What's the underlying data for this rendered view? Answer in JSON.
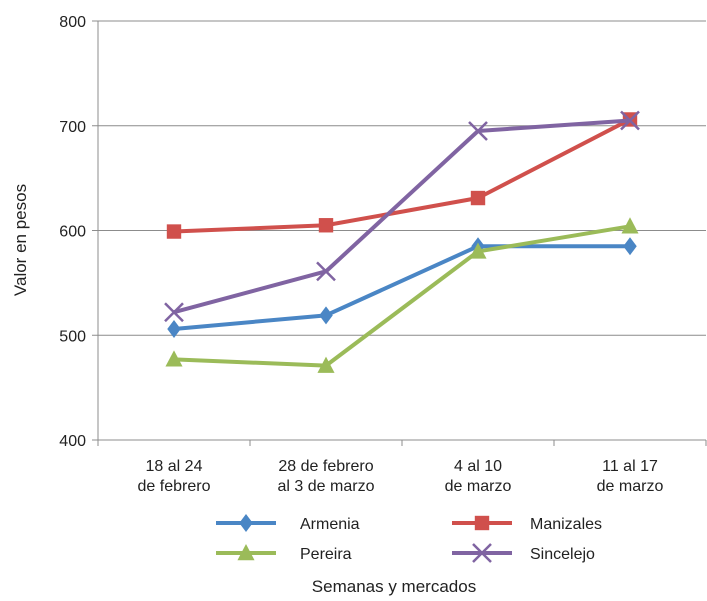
{
  "chart_data": {
    "type": "line",
    "categories": [
      [
        "18 al 24",
        "de febrero"
      ],
      [
        "28 de febrero",
        "al 3 de marzo"
      ],
      [
        "4 al 10",
        "de marzo"
      ],
      [
        "11 al 17",
        "de marzo"
      ]
    ],
    "series": [
      {
        "name": "Armenia",
        "values": [
          506,
          519,
          585,
          585
        ],
        "color": "#4a86c5",
        "marker": "diamond"
      },
      {
        "name": "Manizales",
        "values": [
          599,
          605,
          631,
          706
        ],
        "color": "#d0504c",
        "marker": "square"
      },
      {
        "name": "Pereira",
        "values": [
          477,
          471,
          580,
          604
        ],
        "color": "#9bbb59",
        "marker": "triangle"
      },
      {
        "name": "Sincelejo",
        "values": [
          522,
          561,
          695,
          705
        ],
        "color": "#8064a2",
        "marker": "x"
      }
    ],
    "y_ticks": [
      400,
      500,
      600,
      700,
      800
    ],
    "ylim": [
      400,
      800
    ],
    "ylabel": "Valor en pesos",
    "xlabel": "Semanas y mercados",
    "grid": true,
    "legend": "bottom"
  }
}
